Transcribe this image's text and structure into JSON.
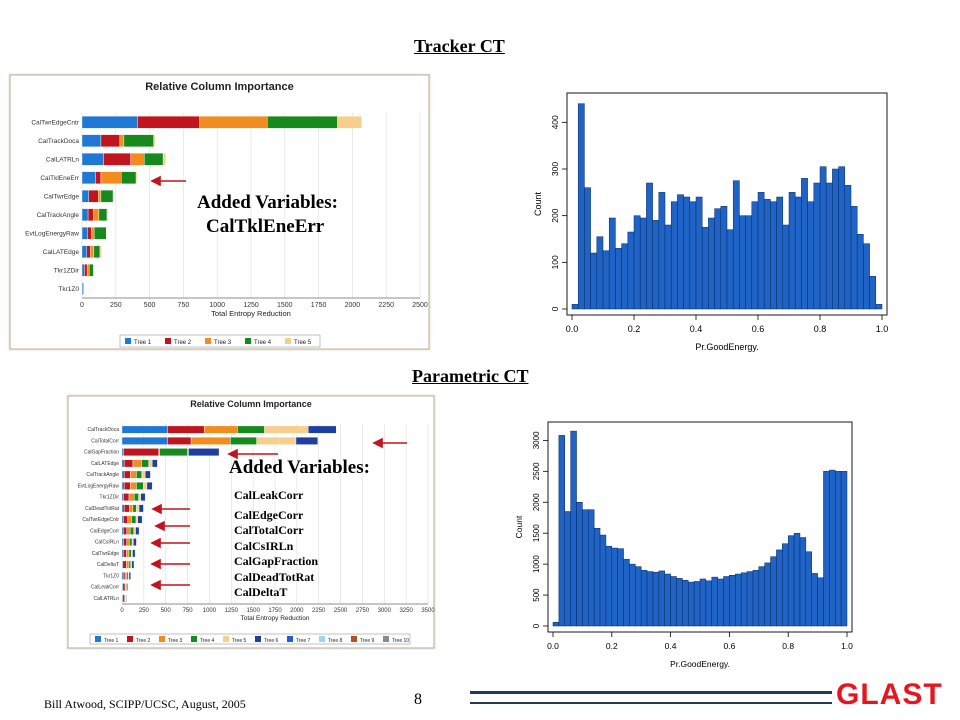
{
  "slide": {
    "title_top": "Tracker CT",
    "title_mid": "Parametric CT",
    "added_top_head": "Added Variables:",
    "added_top_var": "CalTklEneErr",
    "added_mid_head": "Added Variables:",
    "added_mid_vars": [
      "CalLeakCorr",
      "CalEdgeCorr",
      "CalTotalCorr",
      "CalCsIRLn",
      "CalGapFraction",
      "CalDeadTotRat",
      "CalDeltaT"
    ],
    "footer": "Bill Atwood, SCIPP/UCSC, August, 2005",
    "page_number": "8",
    "logo": "GLAST",
    "colors": {
      "arrow": "#c0141e",
      "hist_fill": "#1f63c6",
      "logo": "#e8141e",
      "rule": "#1f3a5a",
      "panel": "#fcf0de"
    }
  },
  "chart_data": [
    {
      "type": "bar",
      "orientation": "horizontal",
      "stacked": true,
      "title": "Relative Column Importance",
      "xlabel": "Total Entropy Reduction",
      "xlim": [
        0,
        2500
      ],
      "xticks": [
        0,
        250,
        500,
        750,
        1000,
        1250,
        1500,
        1750,
        2000,
        2250,
        2500
      ],
      "legend_position": "bottom",
      "categories": [
        "CalTwrEdgeCntr",
        "CalTrackDoca",
        "CalLATRLn",
        "CalTklEneErr",
        "CalTwrEdge",
        "CalTrackAngle",
        "EvtLogEnergyRaw",
        "CalLATEdge",
        "Tkr1ZDir",
        "Tkr1Z0"
      ],
      "series": [
        {
          "name": "Tree 1",
          "color": "#1f78d4",
          "values": [
            410,
            140,
            160,
            100,
            50,
            45,
            40,
            35,
            18,
            8
          ]
        },
        {
          "name": "Tree 2",
          "color": "#c0141e",
          "values": [
            460,
            140,
            200,
            40,
            70,
            40,
            30,
            28,
            20,
            6
          ]
        },
        {
          "name": "Tree 3",
          "color": "#f28c1e",
          "values": [
            500,
            30,
            100,
            150,
            20,
            40,
            20,
            25,
            15,
            0
          ]
        },
        {
          "name": "Tree 4",
          "color": "#178a1e",
          "values": [
            520,
            220,
            140,
            110,
            90,
            60,
            90,
            45,
            30,
            0
          ]
        },
        {
          "name": "Tree 5",
          "color": "#f7cf8c",
          "values": [
            180,
            10,
            20,
            10,
            6,
            8,
            4,
            12,
            6,
            0
          ]
        }
      ]
    },
    {
      "type": "histogram",
      "xlabel": "Pr.GoodEnergy.",
      "ylabel": "Count",
      "xlim": [
        0,
        1
      ],
      "ylim": [
        0,
        450
      ],
      "xticks": [
        "0.0",
        "0.2",
        "0.4",
        "0.6",
        "0.8",
        "1.0"
      ],
      "yticks": [
        "0",
        "100",
        "200",
        "300",
        "400"
      ],
      "bin_width": 0.02,
      "x_start": 0.0,
      "values": [
        10,
        440,
        260,
        120,
        155,
        125,
        195,
        130,
        140,
        165,
        200,
        195,
        270,
        190,
        250,
        180,
        230,
        245,
        240,
        230,
        240,
        175,
        195,
        215,
        220,
        170,
        275,
        200,
        200,
        230,
        250,
        235,
        230,
        240,
        180,
        250,
        240,
        280,
        230,
        270,
        305,
        270,
        300,
        305,
        265,
        220,
        160,
        140,
        70,
        10
      ]
    },
    {
      "type": "bar",
      "orientation": "horizontal",
      "stacked": true,
      "title": "Relative Column Importance",
      "xlabel": "Total Entropy Reduction",
      "xlim": [
        0,
        3500
      ],
      "xticks": [
        0,
        250,
        500,
        750,
        1000,
        1250,
        1500,
        1750,
        2000,
        2250,
        2500,
        2750,
        3000,
        3250,
        3500
      ],
      "legend_position": "bottom",
      "categories": [
        "CalTrackDoca",
        "CalTotalCorr",
        "CalGapFraction",
        "CalLATEdge",
        "CalTrackAngle",
        "EvtLogEnergyRaw",
        "Tkr1ZDir",
        "CalDeadTotRat",
        "CalTwrEdgeCntr",
        "CalEdgeCorr",
        "CalCsIRLn",
        "CalTwrEdge",
        "CalDeltaT",
        "Tkr1Z0",
        "CalLeakCorr",
        "CalLATRLn"
      ],
      "series": [
        {
          "name": "Tree 1",
          "color": "#1f78d4",
          "values": [
            520,
            520,
            20,
            25,
            25,
            25,
            20,
            25,
            20,
            15,
            20,
            15,
            10,
            15,
            10,
            10
          ]
        },
        {
          "name": "Tree 2",
          "color": "#c0141e",
          "values": [
            420,
            270,
            400,
            100,
            70,
            70,
            60,
            60,
            45,
            40,
            35,
            35,
            40,
            20,
            25,
            20
          ]
        },
        {
          "name": "Tree 3",
          "color": "#f28c1e",
          "values": [
            380,
            450,
            10,
            100,
            70,
            70,
            60,
            40,
            45,
            40,
            30,
            30,
            30,
            20,
            10,
            6
          ]
        },
        {
          "name": "Tree 4",
          "color": "#178a1e",
          "values": [
            310,
            300,
            320,
            80,
            60,
            80,
            50,
            40,
            50,
            40,
            30,
            25,
            20,
            15,
            10,
            6
          ]
        },
        {
          "name": "Tree 5",
          "color": "#f7cf8c",
          "values": [
            500,
            450,
            10,
            40,
            40,
            40,
            25,
            30,
            20,
            20,
            15,
            15,
            12,
            10,
            5,
            4
          ]
        },
        {
          "name": "Tree 6",
          "color": "#1f3fa0",
          "values": [
            320,
            250,
            350,
            60,
            60,
            60,
            50,
            50,
            50,
            40,
            35,
            30,
            25,
            20,
            10,
            6
          ]
        },
        {
          "name": "Tree 7",
          "color": "#1f5fd0",
          "values": [
            0,
            0,
            0,
            0,
            0,
            0,
            0,
            0,
            0,
            0,
            0,
            0,
            0,
            0,
            0,
            0
          ]
        },
        {
          "name": "Tree 8",
          "color": "#9fd4f5",
          "values": [
            0,
            0,
            0,
            0,
            0,
            0,
            0,
            0,
            0,
            0,
            0,
            0,
            0,
            0,
            0,
            0
          ]
        },
        {
          "name": "Tree 9",
          "color": "#b4501e",
          "values": [
            0,
            0,
            0,
            0,
            0,
            0,
            0,
            0,
            0,
            0,
            0,
            0,
            0,
            0,
            0,
            0
          ]
        },
        {
          "name": "Tree 10",
          "color": "#8a8a8a",
          "values": [
            0,
            0,
            0,
            0,
            0,
            0,
            0,
            0,
            0,
            0,
            0,
            0,
            0,
            0,
            0,
            0
          ]
        }
      ]
    },
    {
      "type": "histogram",
      "xlabel": "Pr.GoodEnergy.",
      "ylabel": "Count",
      "xlim": [
        0,
        1
      ],
      "ylim": [
        0,
        3200
      ],
      "xticks": [
        "0.0",
        "0.2",
        "0.4",
        "0.6",
        "0.8",
        "1.0"
      ],
      "yticks": [
        "0",
        "500",
        "1000",
        "1500",
        "2000",
        "2500",
        "3000"
      ],
      "bin_width": 0.02,
      "x_start": 0.0,
      "values": [
        60,
        3080,
        1850,
        3150,
        2000,
        1880,
        1880,
        1580,
        1470,
        1290,
        1260,
        1250,
        1080,
        1000,
        960,
        900,
        880,
        870,
        890,
        840,
        800,
        770,
        740,
        710,
        720,
        760,
        730,
        790,
        760,
        800,
        820,
        840,
        860,
        880,
        900,
        960,
        1020,
        1120,
        1230,
        1330,
        1460,
        1500,
        1430,
        1200,
        850,
        780,
        2500,
        2520,
        2500,
        2500
      ]
    }
  ]
}
